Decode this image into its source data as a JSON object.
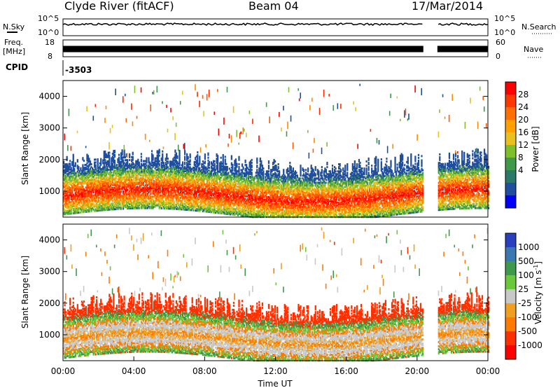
{
  "header": {
    "station": "Clyde River (fitACF)",
    "beam": "Beam 04",
    "date": "17/Mar/2014"
  },
  "strips": {
    "nsky_label": "N.Sky",
    "nsky_ticks": [
      "10^5",
      "10^0"
    ],
    "nsearch_label": "N.Search",
    "freq_label": "Freq.",
    "freq_unit": "[MHz]",
    "freq_ticks": [
      "18",
      "8"
    ],
    "nave_label": "Nave",
    "nave_ticks": [
      "60",
      "0"
    ],
    "cpid_label": "CPID",
    "cpid_value": "-3503"
  },
  "chart_data": [
    {
      "type": "heatmap",
      "panel": "power",
      "ylabel": "Slant Range [km]",
      "xlabel": "",
      "colorbar_label": "Power [dB]",
      "colorbar_ticks": [
        "28",
        "24",
        "20",
        "16",
        "12",
        "8",
        "4"
      ],
      "colorbar_colors": [
        "#ff0000",
        "#ff3800",
        "#ff7000",
        "#ffa200",
        "#e8c020",
        "#7fbf2a",
        "#3e9a4a",
        "#2a7a6a",
        "#1f4f9e",
        "#0000ff"
      ],
      "xlim": [
        "00:00",
        "00:00"
      ],
      "ylim": [
        180,
        4500
      ],
      "yticks": [
        1000,
        2000,
        3000,
        4000
      ],
      "data_gap": [
        "20:20",
        "21:10"
      ]
    },
    {
      "type": "heatmap",
      "panel": "velocity",
      "ylabel": "Slant Range [km]",
      "xlabel": "Time UT",
      "colorbar_label": "Velocity [m s^-1]",
      "colorbar_ticks": [
        "1000",
        "500",
        "100",
        "25",
        "-25",
        "-100",
        "-500",
        "-1000"
      ],
      "colorbar_colors": [
        "#2840c0",
        "#3a78b0",
        "#3e9a4a",
        "#6ac83a",
        "#c8c8c8",
        "#f0a020",
        "#ff7a00",
        "#ff3000",
        "#ff0000"
      ],
      "xlim": [
        "00:00",
        "00:00"
      ],
      "xticks": [
        "00:00",
        "04:00",
        "08:00",
        "12:00",
        "16:00",
        "20:00",
        "00:00"
      ],
      "ylim": [
        180,
        4500
      ],
      "yticks": [
        1000,
        2000,
        3000,
        4000
      ],
      "data_gap": [
        "20:20",
        "21:10"
      ]
    }
  ]
}
